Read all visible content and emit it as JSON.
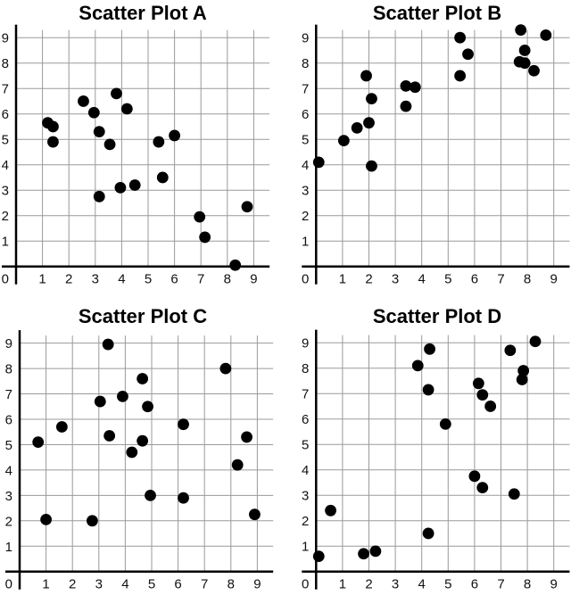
{
  "chart_data": [
    {
      "type": "scatter",
      "title": "Scatter Plot A",
      "xlim": [
        0,
        9.6
      ],
      "ylim": [
        0,
        9.3
      ],
      "xticks": [
        "1",
        "2",
        "3",
        "4",
        "5",
        "6",
        "7",
        "8",
        "9"
      ],
      "yticks": [
        "1",
        "2",
        "3",
        "4",
        "5",
        "6",
        "7",
        "8",
        "9"
      ],
      "origin_label": "0",
      "grid": true,
      "marker_color": "#000000",
      "points": [
        [
          1.2,
          5.65
        ],
        [
          1.4,
          5.5
        ],
        [
          1.4,
          4.9
        ],
        [
          2.55,
          6.5
        ],
        [
          2.95,
          6.05
        ],
        [
          3.15,
          5.3
        ],
        [
          3.8,
          6.8
        ],
        [
          4.2,
          6.2
        ],
        [
          3.55,
          4.8
        ],
        [
          3.15,
          2.75
        ],
        [
          3.95,
          3.1
        ],
        [
          4.5,
          3.2
        ],
        [
          5.4,
          4.9
        ],
        [
          6.0,
          5.15
        ],
        [
          5.55,
          3.5
        ],
        [
          6.95,
          1.95
        ],
        [
          7.15,
          1.15
        ],
        [
          8.3,
          0.05
        ],
        [
          8.75,
          2.35
        ]
      ]
    },
    {
      "type": "scatter",
      "title": "Scatter Plot B",
      "xlim": [
        0,
        9.6
      ],
      "ylim": [
        0,
        9.3
      ],
      "xticks": [
        "1",
        "2",
        "3",
        "4",
        "5",
        "6",
        "7",
        "8",
        "9"
      ],
      "yticks": [
        "1",
        "2",
        "3",
        "4",
        "5",
        "6",
        "7",
        "8",
        "9"
      ],
      "origin_label": "0",
      "grid": true,
      "marker_color": "#000000",
      "points": [
        [
          0.1,
          4.1
        ],
        [
          1.05,
          4.95
        ],
        [
          1.55,
          5.45
        ],
        [
          1.9,
          7.5
        ],
        [
          2.1,
          6.6
        ],
        [
          2.0,
          5.65
        ],
        [
          2.1,
          3.95
        ],
        [
          3.4,
          7.1
        ],
        [
          3.75,
          7.05
        ],
        [
          3.4,
          6.3
        ],
        [
          5.45,
          9.0
        ],
        [
          5.75,
          8.35
        ],
        [
          5.45,
          7.5
        ],
        [
          7.75,
          9.3
        ],
        [
          8.7,
          9.1
        ],
        [
          7.9,
          8.5
        ],
        [
          7.7,
          8.05
        ],
        [
          7.9,
          8.0
        ],
        [
          8.25,
          7.7
        ]
      ]
    },
    {
      "type": "scatter",
      "title": "Scatter Plot C",
      "xlim": [
        0,
        9.6
      ],
      "ylim": [
        0,
        9.3
      ],
      "xticks": [
        "1",
        "2",
        "3",
        "4",
        "5",
        "6",
        "7",
        "8",
        "9"
      ],
      "yticks": [
        "1",
        "2",
        "3",
        "4",
        "5",
        "6",
        "7",
        "8",
        "9"
      ],
      "origin_label": "0",
      "grid": true,
      "marker_color": "#000000",
      "points": [
        [
          0.7,
          5.1
        ],
        [
          1.0,
          2.05
        ],
        [
          1.6,
          5.7
        ],
        [
          2.75,
          2.0
        ],
        [
          3.05,
          6.7
        ],
        [
          3.35,
          8.95
        ],
        [
          3.4,
          5.35
        ],
        [
          3.9,
          6.9
        ],
        [
          4.25,
          4.7
        ],
        [
          4.65,
          7.6
        ],
        [
          4.85,
          6.5
        ],
        [
          4.65,
          5.15
        ],
        [
          4.95,
          3.0
        ],
        [
          6.2,
          5.8
        ],
        [
          6.2,
          2.9
        ],
        [
          7.8,
          8.0
        ],
        [
          8.6,
          5.3
        ],
        [
          8.25,
          4.2
        ],
        [
          8.9,
          2.25
        ]
      ]
    },
    {
      "type": "scatter",
      "title": "Scatter Plot D",
      "xlim": [
        0,
        9.6
      ],
      "ylim": [
        0,
        9.3
      ],
      "xticks": [
        "1",
        "2",
        "3",
        "4",
        "5",
        "6",
        "7",
        "8",
        "9"
      ],
      "yticks": [
        "1",
        "2",
        "3",
        "4",
        "5",
        "6",
        "7",
        "8",
        "9"
      ],
      "origin_label": "0",
      "grid": true,
      "marker_color": "#000000",
      "points": [
        [
          0.1,
          0.6
        ],
        [
          0.55,
          2.4
        ],
        [
          1.8,
          0.7
        ],
        [
          2.25,
          0.8
        ],
        [
          3.85,
          8.1
        ],
        [
          4.3,
          8.75
        ],
        [
          4.25,
          7.15
        ],
        [
          4.25,
          1.5
        ],
        [
          4.9,
          5.8
        ],
        [
          6.0,
          3.75
        ],
        [
          6.3,
          3.3
        ],
        [
          6.15,
          7.4
        ],
        [
          6.3,
          6.95
        ],
        [
          6.6,
          6.5
        ],
        [
          7.35,
          8.7
        ],
        [
          8.3,
          9.05
        ],
        [
          7.85,
          7.9
        ],
        [
          7.8,
          7.55
        ],
        [
          7.5,
          3.05
        ]
      ]
    }
  ]
}
